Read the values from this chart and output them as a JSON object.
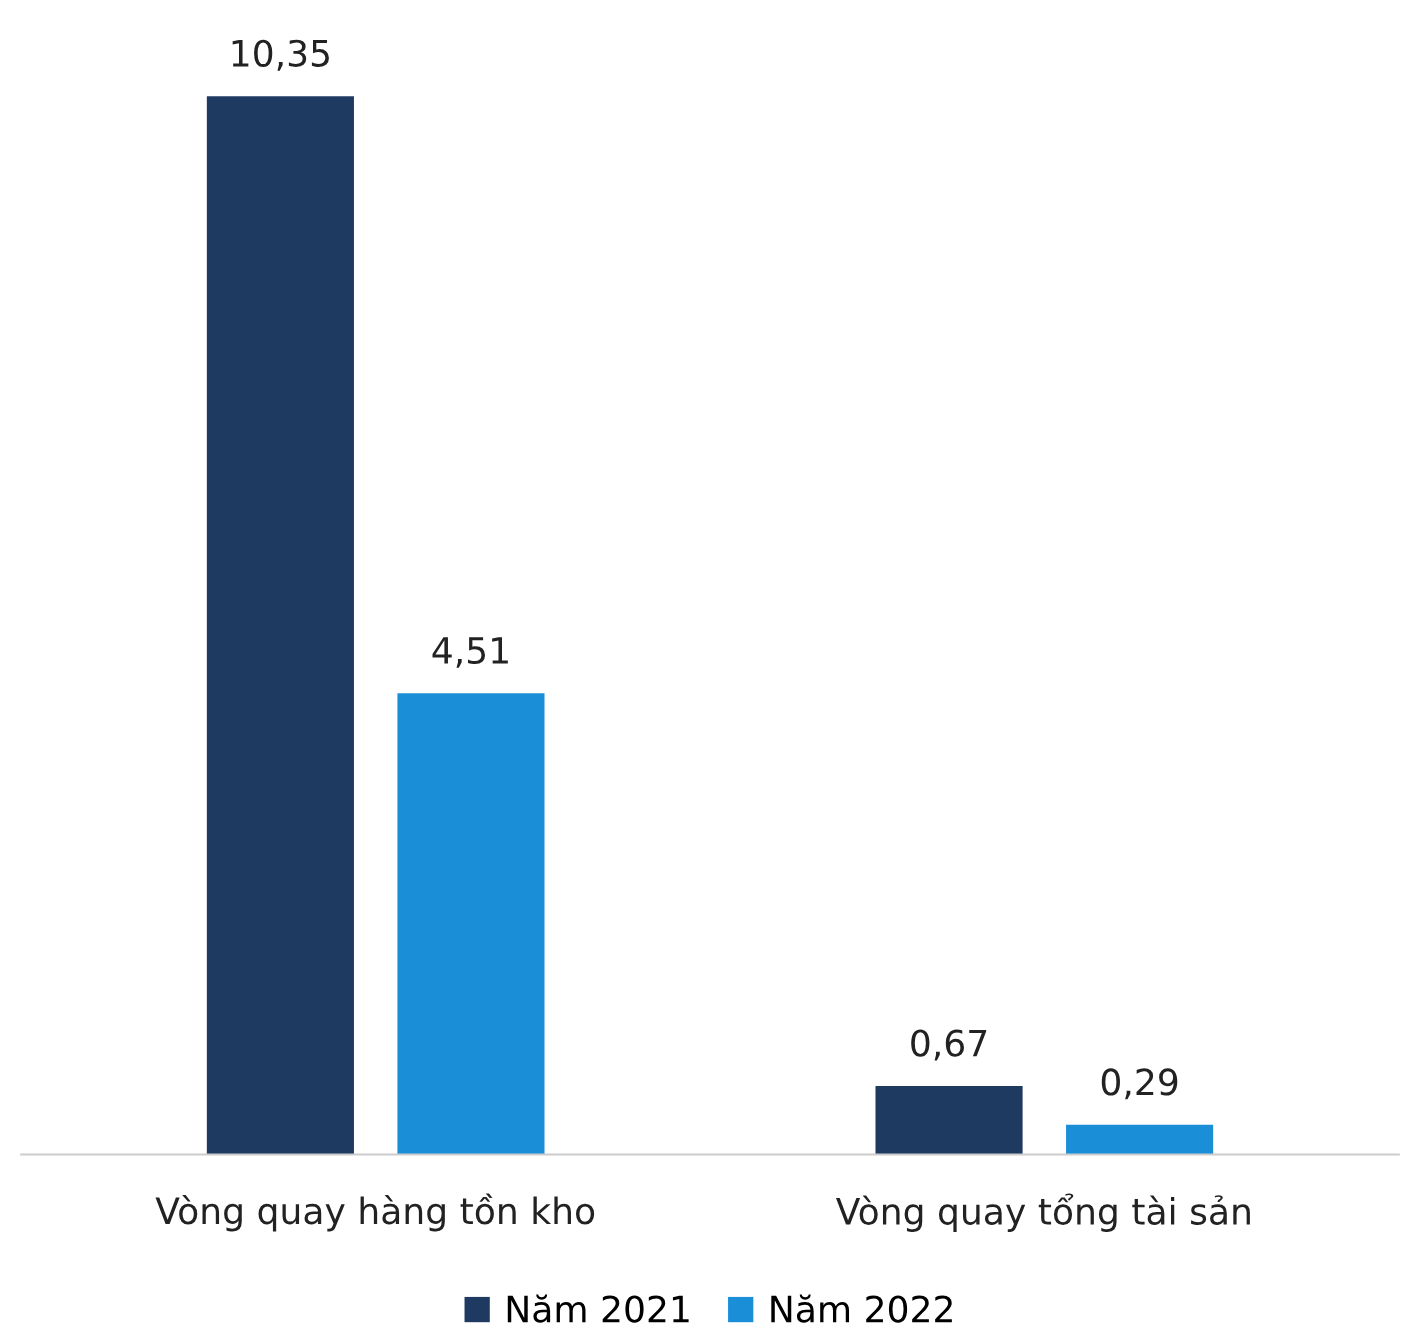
{
  "chart_data": {
    "type": "bar",
    "categories": [
      "Vòng quay hàng tồn kho",
      "Vòng quay tổng tài sản"
    ],
    "series": [
      {
        "name": "Năm 2021",
        "color": "#1f3a60",
        "values": [
          10.35,
          0.67
        ],
        "value_labels": [
          "10,35",
          "0,67"
        ]
      },
      {
        "name": "Năm 2022",
        "color": "#1a8fd8",
        "values": [
          4.51,
          0.29
        ],
        "value_labels": [
          "4,51",
          "0,29"
        ]
      }
    ],
    "legend": "bottom",
    "tick_labels": "x"
  }
}
